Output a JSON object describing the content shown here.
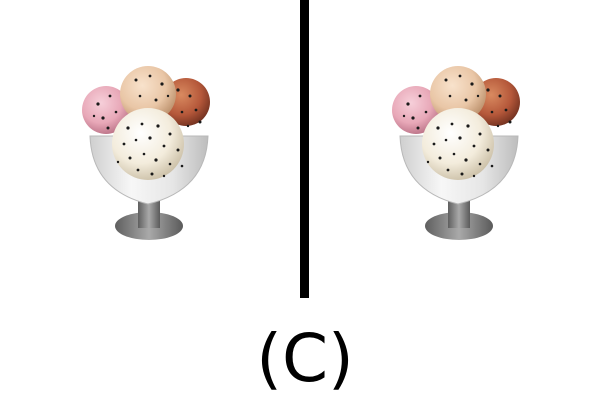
{
  "caption": "(C)",
  "colors": {
    "background": "#ffffff",
    "divider": "#000000",
    "scoop_pink": "#e8a8b8",
    "scoop_peach": "#e9c6a6",
    "scoop_rust": "#b5583a",
    "scoop_cream": "#f3ecdc",
    "glass": "#ececec",
    "stem": "#8a8a8a",
    "sprinkle": "#1a1a1a"
  },
  "panels": [
    {
      "icon": "ice-cream-sundae-icon"
    },
    {
      "icon": "ice-cream-sundae-icon"
    }
  ]
}
